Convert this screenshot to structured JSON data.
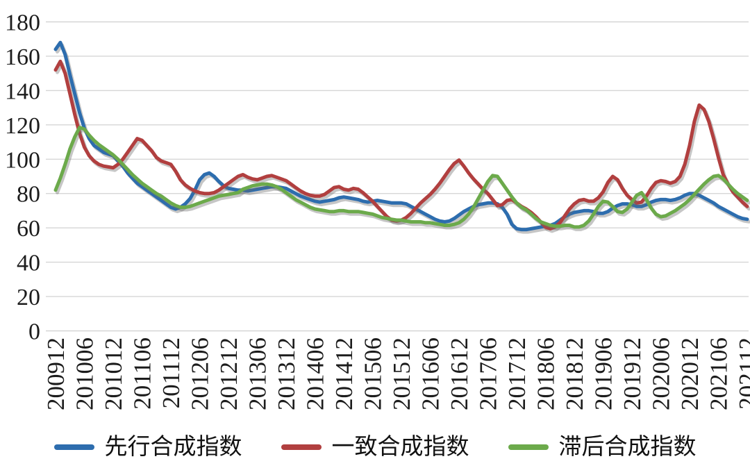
{
  "chart_data": {
    "type": "line",
    "title": "",
    "xlabel": "",
    "ylabel": "",
    "ylim": [
      0,
      180
    ],
    "y_ticks": [
      0,
      20,
      40,
      60,
      80,
      100,
      120,
      140,
      160,
      180
    ],
    "grid": "horizontal",
    "grid_color": "#d6d6d6",
    "axis_text_color": "#1c1c1c",
    "legend_position": "bottom",
    "x_tick_interval_months": 6,
    "x_tick_labels": [
      "200912",
      "201006",
      "201012",
      "201106",
      "201112",
      "201206",
      "201212",
      "201306",
      "201312",
      "201406",
      "201412",
      "201506",
      "201512",
      "201606",
      "201612",
      "201706",
      "201712",
      "201806",
      "201812",
      "201906",
      "201912",
      "202006",
      "202012",
      "202106",
      "202112"
    ],
    "x_unit": "monthly from 200912 to 202112",
    "series": [
      {
        "name": "先行合成指数",
        "color": "#2d6dae",
        "values": [
          164,
          168,
          161,
          149,
          138,
          127,
          118,
          112,
          108,
          106,
          104,
          103,
          102,
          99,
          96,
          92,
          89,
          86,
          84,
          82,
          80,
          78,
          76,
          74,
          72,
          71,
          72,
          74,
          77,
          82,
          88,
          91,
          92,
          90,
          87,
          84.5,
          83,
          82.5,
          82,
          82,
          81.5,
          82,
          82.5,
          83,
          83.5,
          84,
          84,
          83.5,
          83,
          81.5,
          80,
          78.5,
          77.5,
          76.5,
          75.5,
          75,
          75.5,
          76,
          76.5,
          77.5,
          78,
          77.5,
          77,
          76.5,
          75.5,
          75,
          75.5,
          76,
          75.5,
          75,
          74.5,
          74.5,
          74.5,
          74,
          72.5,
          71,
          69.5,
          68,
          66.5,
          65,
          64,
          63.5,
          64,
          65.5,
          67.5,
          69.5,
          71,
          72.5,
          73.5,
          74,
          74.5,
          74.5,
          74,
          72,
          68,
          62,
          59.5,
          59,
          59,
          59.5,
          60,
          60.5,
          61,
          61.5,
          62.5,
          64.5,
          66.5,
          68,
          69,
          69.5,
          70,
          70,
          69.5,
          68.5,
          68.5,
          69.5,
          71.5,
          73,
          74,
          74,
          73.5,
          72.5,
          72.5,
          73.5,
          75,
          76,
          76.5,
          76.5,
          76,
          76.5,
          77.5,
          79,
          80,
          80,
          79,
          77.5,
          76,
          74.5,
          72.5,
          71,
          69.5,
          68,
          66.5,
          65.5,
          65
        ]
      },
      {
        "name": "一致合成指数",
        "color": "#b13f3f",
        "values": [
          152,
          157,
          150,
          138,
          126,
          115,
          107,
          102,
          99,
          97,
          96,
          95.5,
          95,
          97,
          100,
          104,
          108,
          112,
          111,
          108,
          105,
          101,
          99,
          98,
          97,
          93,
          88,
          85,
          83,
          81.5,
          80.5,
          80,
          80,
          80.5,
          82,
          84,
          86,
          88,
          90,
          91,
          89.5,
          88.5,
          88,
          89,
          90,
          90.5,
          89.5,
          88.5,
          87.5,
          85.5,
          83.5,
          81.5,
          80,
          79,
          78.5,
          78.5,
          79.5,
          81.5,
          83.5,
          84,
          82.5,
          82,
          83,
          82.5,
          80.5,
          78,
          75.5,
          72.5,
          69.5,
          66.5,
          64.5,
          64,
          64.5,
          66,
          68.5,
          71.5,
          74.5,
          77,
          79.5,
          82.5,
          86,
          90,
          94,
          97.5,
          99.5,
          96,
          92,
          88.5,
          85.5,
          82.5,
          80,
          76.5,
          73,
          73.5,
          76,
          76.5,
          74.5,
          72.5,
          71,
          69,
          66.5,
          63.5,
          60.5,
          59.5,
          60.5,
          63,
          67,
          71,
          74,
          76,
          76.5,
          75.5,
          75.5,
          77.5,
          81,
          86.5,
          90,
          88,
          83,
          79,
          76.5,
          74.5,
          75,
          78.5,
          83,
          86.5,
          87.5,
          87,
          86,
          87,
          90,
          97,
          108,
          122,
          131.5,
          129,
          122,
          112,
          101,
          91,
          85.5,
          81,
          78,
          75,
          72.5
        ]
      },
      {
        "name": "滞后合成指数",
        "color": "#6caa4b",
        "values": [
          82,
          89,
          97,
          106,
          113,
          118.5,
          117.5,
          114,
          111,
          108.5,
          106.5,
          104.5,
          102.5,
          100,
          97,
          94,
          91,
          88.5,
          86,
          84,
          82,
          80,
          78.5,
          76.5,
          74.5,
          73,
          72,
          72,
          72.5,
          73.5,
          74.5,
          75.5,
          76.5,
          77.5,
          78.5,
          79,
          79.5,
          80,
          80.5,
          82.5,
          83.5,
          84.5,
          85,
          85.5,
          85.5,
          85,
          84,
          82.5,
          80.5,
          78.5,
          76.5,
          75,
          73.5,
          72,
          71,
          70.5,
          70,
          69.5,
          69.5,
          70,
          70,
          69.5,
          69.5,
          69.5,
          69,
          68.5,
          68,
          67,
          66,
          65.5,
          65,
          64.5,
          64.5,
          64,
          63.5,
          63.5,
          63.5,
          63,
          63,
          62.5,
          62,
          61.5,
          61.5,
          62,
          63,
          65,
          68,
          72,
          77,
          82,
          87,
          90.5,
          90,
          86,
          82,
          78,
          74.5,
          72,
          70.5,
          68,
          65.5,
          63.5,
          62.5,
          61.5,
          61,
          61,
          61.5,
          61.5,
          60.5,
          60.5,
          61.5,
          64,
          68,
          72.5,
          75.5,
          75,
          72.5,
          69.5,
          69,
          71,
          75,
          79,
          80.5,
          76.5,
          71.5,
          68,
          66.5,
          67,
          68.5,
          70,
          72,
          74,
          76.5,
          79.5,
          82.5,
          85.5,
          88,
          90,
          90.5,
          88.5,
          85.5,
          82.5,
          80,
          78,
          76
        ]
      }
    ],
    "style": {
      "line_width": 5,
      "line_shadow": "soft gray drop shadow offset down-right",
      "x_labels_rotated_degrees": 90
    }
  },
  "legend": {
    "items": [
      "先行合成指数",
      "一致合成指数",
      "滞后合成指数"
    ]
  }
}
